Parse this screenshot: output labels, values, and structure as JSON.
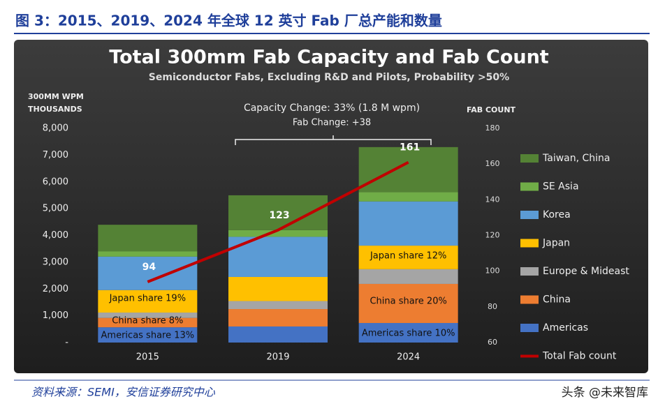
{
  "header": "图 3：2015、2019、2024 年全球 12 英寸 Fab 厂总产能和数量",
  "source": "资料来源：SEMI，安信证券研究中心",
  "watermark": "头条 @未来智库",
  "chart_data": {
    "type": "bar",
    "stacked": true,
    "title": "Total 300mm Fab Capacity and Fab Count",
    "subtitle": "Semiconductor Fabs, Excluding R&D and Pilots, Probability >50%",
    "y_label": [
      "300MM WPM",
      "THOUSANDS"
    ],
    "y2_label": "FAB COUNT",
    "annotations": [
      "Capacity Change: 33% (1.8 M wpm)",
      "Fab Change: +38"
    ],
    "bar_notes": [
      "Japan share 19%",
      "China share 8%",
      "Americas share 13%",
      "Japan share 12%",
      "China share 20%",
      "Americas share 10%"
    ],
    "categories": [
      "2015",
      "2019",
      "2024"
    ],
    "ylim": [
      0,
      8000
    ],
    "yticks": [
      {
        "value": 0,
        "label": "-"
      },
      {
        "value": 1000,
        "label": "1,000"
      },
      {
        "value": 2000,
        "label": "2,000"
      },
      {
        "value": 3000,
        "label": "3,000"
      },
      {
        "value": 4000,
        "label": "4,000"
      },
      {
        "value": 5000,
        "label": "5,000"
      },
      {
        "value": 6000,
        "label": "6,000"
      },
      {
        "value": 7000,
        "label": "7,000"
      },
      {
        "value": 8000,
        "label": "8,000"
      }
    ],
    "y2lim": [
      60,
      180
    ],
    "y2ticks": [
      60,
      80,
      100,
      120,
      140,
      160,
      180
    ],
    "series": [
      {
        "name": "Americas",
        "color": "#4472c4",
        "values": [
          570,
          600,
          730
        ]
      },
      {
        "name": "China",
        "color": "#ed7d31",
        "values": [
          350,
          650,
          1460
        ]
      },
      {
        "name": "Europe & Mideast",
        "color": "#a5a5a5",
        "values": [
          200,
          300,
          550
        ]
      },
      {
        "name": "Japan",
        "color": "#ffc000",
        "values": [
          840,
          900,
          880
        ]
      },
      {
        "name": "Korea",
        "color": "#5b9bd5",
        "values": [
          1250,
          1500,
          1650
        ]
      },
      {
        "name": "SE Asia",
        "color": "#70ad47",
        "values": [
          200,
          250,
          350
        ]
      },
      {
        "name": "Taiwan, China",
        "color": "#548235",
        "values": [
          990,
          1300,
          1680
        ]
      },
      {
        "name": "Total Fab count",
        "color": "#c00000",
        "type": "line",
        "axis": "y2",
        "values": [
          94,
          123,
          161
        ]
      }
    ]
  }
}
